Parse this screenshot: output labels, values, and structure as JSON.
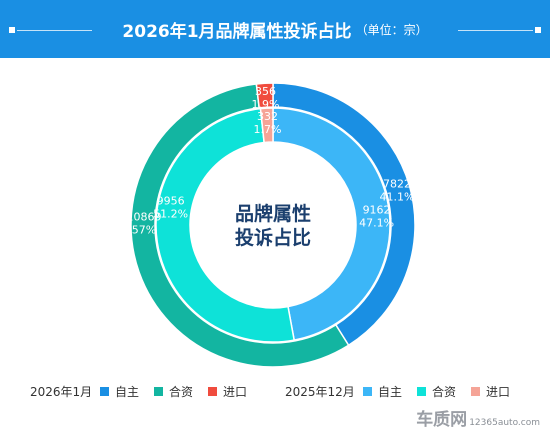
{
  "header": {
    "title": "2026年1月品牌属性投诉占比",
    "unit": "（单位：宗）"
  },
  "center_label": {
    "line1": "品牌属性",
    "line2": "投诉占比"
  },
  "watermark": {
    "brand": "车质网",
    "url": "12365auto.com"
  },
  "chart_data": {
    "type": "pie",
    "variant": "nested-donut",
    "title": "2026年1月品牌属性投诉占比",
    "subtitle": "（单位：宗）",
    "categories": [
      "自主",
      "合资",
      "进口"
    ],
    "series": [
      {
        "name": "2026年1月",
        "ring": "outer",
        "values": [
          7822,
          10869,
          356
        ],
        "labels": [
          "7822",
          "10869",
          "356"
        ],
        "percent_labels": [
          "41.1%",
          "57%",
          "1.9%"
        ],
        "colors": [
          "#1a8fe3",
          "#13b5a1",
          "#f04c3e"
        ]
      },
      {
        "name": "2025年12月",
        "ring": "inner",
        "values": [
          9162,
          9956,
          332
        ],
        "labels": [
          "9162",
          "9956",
          "332"
        ],
        "percent_labels": [
          "47.1%",
          "51.2%",
          "1.7%"
        ],
        "colors": [
          "#3cb6f7",
          "#0ee2d8",
          "#f5a497"
        ]
      }
    ],
    "legend": {
      "placement": "bottom",
      "groups": [
        {
          "title": "2026年1月",
          "items": [
            "自主",
            "合资",
            "进口"
          ]
        },
        {
          "title": "2025年12月",
          "items": [
            "自主",
            "合资",
            "进口"
          ]
        }
      ]
    }
  }
}
